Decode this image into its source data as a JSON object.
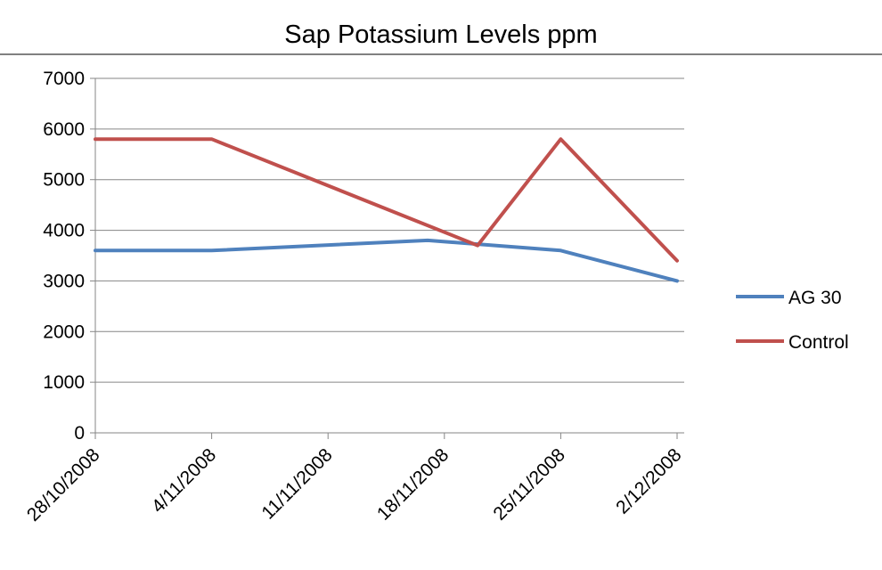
{
  "chart_data": {
    "type": "line",
    "title": "Sap Potassium Levels ppm",
    "xlabel": "",
    "ylabel": "",
    "ylim": [
      0,
      7000
    ],
    "yticks": [
      0,
      1000,
      2000,
      3000,
      4000,
      5000,
      6000,
      7000
    ],
    "x_ticks": [
      "28/10/2008",
      "4/11/2008",
      "11/11/2008",
      "18/11/2008",
      "25/11/2008",
      "2/12/2008"
    ],
    "x_range": [
      "28/10/2008",
      "2/12/2008"
    ],
    "grid": true,
    "legend_position": "right",
    "series": [
      {
        "name": "AG 30",
        "color": "#4F81BD",
        "points": [
          {
            "x": "28/10/2008",
            "y": 3600
          },
          {
            "x": "4/11/2008",
            "y": 3600
          },
          {
            "x": "17/11/2008",
            "y": 3800
          },
          {
            "x": "25/11/2008",
            "y": 3600
          },
          {
            "x": "2/12/2008",
            "y": 3000
          }
        ]
      },
      {
        "name": "Control",
        "color": "#C0504D",
        "points": [
          {
            "x": "28/10/2008",
            "y": 5800
          },
          {
            "x": "4/11/2008",
            "y": 5800
          },
          {
            "x": "20/11/2008",
            "y": 3700
          },
          {
            "x": "25/11/2008",
            "y": 5800
          },
          {
            "x": "2/12/2008",
            "y": 3400
          }
        ]
      }
    ]
  }
}
